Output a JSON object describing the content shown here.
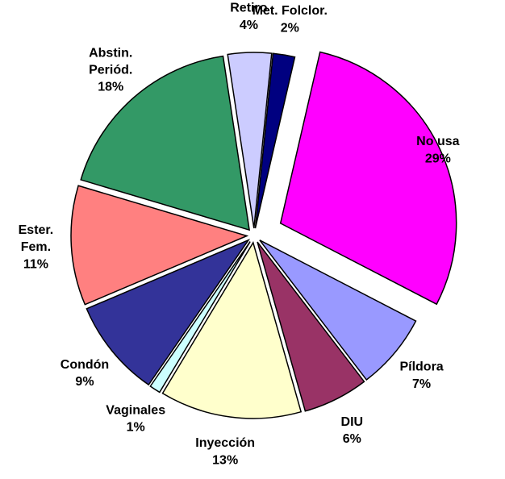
{
  "chart_data": {
    "type": "pie",
    "categories": [
      "No usa",
      "Píldora",
      "DIU",
      "Inyección",
      "Vaginales",
      "Condón",
      "Ester.\nFem.",
      "Abstin.\nPeriód.",
      "Retiro",
      "Met. Folclor."
    ],
    "values": [
      29,
      7,
      6,
      13,
      1,
      9,
      11,
      18,
      4,
      2
    ],
    "value_labels": [
      "29%",
      "7%",
      "6%",
      "13%",
      "1%",
      "9%",
      "11%",
      "18%",
      "4%",
      "2%"
    ],
    "colors": [
      "#ff00ff",
      "#9999ff",
      "#993366",
      "#ffffcc",
      "#ccffff",
      "#333399",
      "#ff8080",
      "#339966",
      "#ccccff",
      "#000080"
    ],
    "legend": false
  }
}
